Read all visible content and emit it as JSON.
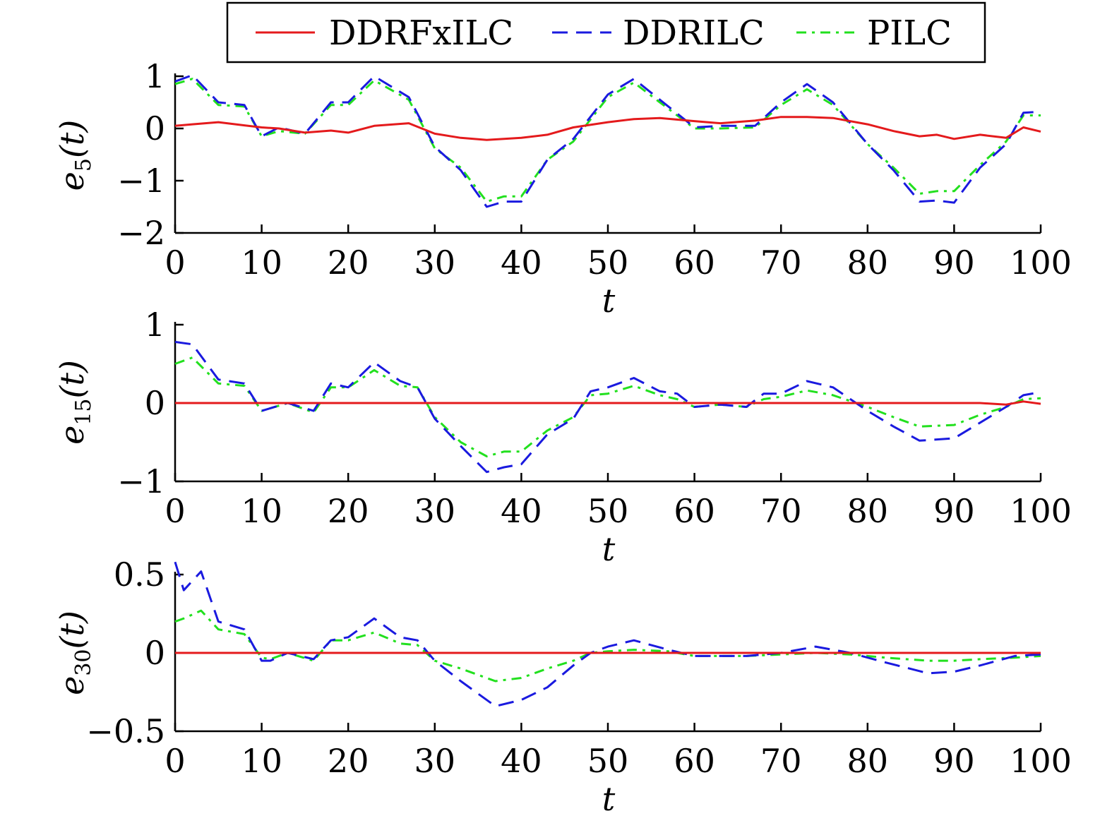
{
  "legend": {
    "entries": [
      {
        "label": "DDRFxILC",
        "color": "#e41a1c",
        "dash": "solid"
      },
      {
        "label": "DDRILC",
        "color": "#1a1adf",
        "dash": "dashed"
      },
      {
        "label": "PILC",
        "color": "#22e01e",
        "dash": "dashdot"
      }
    ]
  },
  "chart_data": [
    {
      "type": "line",
      "ylabel_base": "e",
      "ylabel_sub": "5",
      "ylabel_arg": "(t)",
      "xlabel": "t",
      "xlim": [
        0,
        100
      ],
      "ylim": [
        -2,
        1
      ],
      "xticks": [
        0,
        10,
        20,
        30,
        40,
        50,
        60,
        70,
        80,
        90,
        100
      ],
      "yticks": [
        -2,
        -1,
        0,
        1
      ],
      "ytick_labels": [
        "−2",
        "−1",
        "0",
        "1"
      ],
      "x": [
        0,
        2,
        5,
        8,
        10,
        12,
        15,
        18,
        20,
        23,
        27,
        30,
        33,
        36,
        38,
        40,
        43,
        46,
        50,
        53,
        56,
        60,
        63,
        67,
        70,
        73,
        76,
        80,
        83,
        86,
        88,
        90,
        93,
        96,
        98,
        100
      ],
      "series": [
        {
          "name": "DDRFxILC",
          "values": [
            0.05,
            0.08,
            0.12,
            0.06,
            0.02,
            0.0,
            -0.08,
            -0.04,
            -0.08,
            0.05,
            0.1,
            -0.1,
            -0.18,
            -0.22,
            -0.2,
            -0.18,
            -0.12,
            0.02,
            0.12,
            0.18,
            0.2,
            0.14,
            0.1,
            0.15,
            0.22,
            0.22,
            0.2,
            0.08,
            -0.05,
            -0.15,
            -0.12,
            -0.2,
            -0.12,
            -0.18,
            0.02,
            -0.06
          ]
        },
        {
          "name": "DDRILC",
          "values": [
            0.9,
            1.02,
            0.5,
            0.45,
            -0.15,
            0.02,
            -0.1,
            0.5,
            0.5,
            1.0,
            0.6,
            -0.35,
            -0.8,
            -1.5,
            -1.4,
            -1.4,
            -0.6,
            -0.2,
            0.65,
            0.95,
            0.55,
            0.02,
            0.05,
            0.05,
            0.5,
            0.85,
            0.5,
            -0.3,
            -0.8,
            -1.4,
            -1.38,
            -1.42,
            -0.75,
            -0.3,
            0.3,
            0.32
          ]
        },
        {
          "name": "PILC",
          "values": [
            0.85,
            0.95,
            0.45,
            0.42,
            -0.15,
            -0.05,
            -0.1,
            0.45,
            0.45,
            0.92,
            0.55,
            -0.38,
            -0.75,
            -1.4,
            -1.3,
            -1.3,
            -0.6,
            -0.25,
            0.6,
            0.88,
            0.5,
            0.0,
            0.0,
            0.02,
            0.45,
            0.75,
            0.45,
            -0.3,
            -0.75,
            -1.25,
            -1.2,
            -1.2,
            -0.7,
            -0.25,
            0.25,
            0.25
          ]
        }
      ]
    },
    {
      "type": "line",
      "ylabel_base": "e",
      "ylabel_sub": "15",
      "ylabel_arg": "(t)",
      "xlabel": "t",
      "xlim": [
        0,
        100
      ],
      "ylim": [
        -1,
        1
      ],
      "xticks": [
        0,
        10,
        20,
        30,
        40,
        50,
        60,
        70,
        80,
        90,
        100
      ],
      "yticks": [
        -1,
        0,
        1
      ],
      "ytick_labels": [
        "−1",
        "0",
        "1"
      ],
      "x": [
        0,
        2,
        5,
        8,
        10,
        13,
        16,
        18,
        20,
        23,
        26,
        28,
        30,
        33,
        36,
        38,
        40,
        43,
        46,
        48,
        50,
        53,
        56,
        58,
        60,
        63,
        66,
        68,
        70,
        73,
        76,
        80,
        83,
        86,
        90,
        93,
        96,
        98,
        100
      ],
      "series": [
        {
          "name": "DDRFxILC",
          "values": [
            0.0,
            0.0,
            0.0,
            0.0,
            0.0,
            0.0,
            0.0,
            0.0,
            0.0,
            0.0,
            0.0,
            0.0,
            0.0,
            0.0,
            0.0,
            0.0,
            0.0,
            0.0,
            0.0,
            0.0,
            0.0,
            0.0,
            0.0,
            0.0,
            0.0,
            0.0,
            0.0,
            0.0,
            0.0,
            0.0,
            0.0,
            0.0,
            0.0,
            0.0,
            0.0,
            0.0,
            -0.02,
            0.02,
            -0.01
          ]
        },
        {
          "name": "DDRILC",
          "values": [
            0.78,
            0.75,
            0.3,
            0.25,
            -0.1,
            0.0,
            -0.1,
            0.25,
            0.2,
            0.52,
            0.28,
            0.2,
            -0.2,
            -0.55,
            -0.88,
            -0.82,
            -0.78,
            -0.4,
            -0.2,
            0.15,
            0.2,
            0.32,
            0.15,
            0.12,
            -0.05,
            -0.02,
            -0.05,
            0.12,
            0.12,
            0.28,
            0.2,
            -0.1,
            -0.3,
            -0.48,
            -0.45,
            -0.25,
            -0.05,
            0.1,
            0.14
          ]
        },
        {
          "name": "PILC",
          "values": [
            0.5,
            0.58,
            0.25,
            0.22,
            -0.1,
            0.0,
            -0.12,
            0.2,
            0.2,
            0.42,
            0.22,
            0.2,
            -0.18,
            -0.5,
            -0.68,
            -0.62,
            -0.62,
            -0.35,
            -0.18,
            0.1,
            0.12,
            0.22,
            0.1,
            0.05,
            -0.05,
            -0.02,
            -0.05,
            0.05,
            0.08,
            0.16,
            0.1,
            -0.05,
            -0.18,
            -0.3,
            -0.28,
            -0.15,
            -0.05,
            0.05,
            0.06
          ]
        }
      ]
    },
    {
      "type": "line",
      "ylabel_base": "e",
      "ylabel_sub": "30",
      "ylabel_arg": "(t)",
      "xlabel": "t",
      "xlim": [
        0,
        100
      ],
      "ylim": [
        -0.5,
        0.5
      ],
      "xticks": [
        0,
        10,
        20,
        30,
        40,
        50,
        60,
        70,
        80,
        90,
        100
      ],
      "yticks": [
        -0.5,
        0,
        0.5
      ],
      "ytick_labels": [
        "−0.5",
        "0",
        "0.5"
      ],
      "x": [
        0,
        1,
        3,
        5,
        8,
        10,
        11,
        13,
        16,
        18,
        20,
        23,
        26,
        28,
        30,
        33,
        37,
        40,
        43,
        46,
        48,
        50,
        53,
        57,
        60,
        63,
        66,
        70,
        74,
        78,
        82,
        87,
        90,
        93,
        97,
        100
      ],
      "series": [
        {
          "name": "DDRFxILC",
          "values": [
            0.0,
            0.0,
            0.0,
            0.0,
            0.0,
            0.0,
            0.0,
            0.0,
            0.0,
            0.0,
            0.0,
            0.0,
            0.0,
            0.0,
            0.0,
            0.0,
            0.0,
            0.0,
            0.0,
            0.0,
            0.0,
            0.0,
            0.0,
            0.0,
            0.0,
            0.0,
            0.0,
            0.0,
            0.0,
            0.0,
            0.0,
            0.0,
            0.0,
            0.0,
            0.0,
            0.0
          ]
        },
        {
          "name": "DDRILC",
          "values": [
            0.58,
            0.4,
            0.52,
            0.2,
            0.15,
            -0.05,
            -0.05,
            0.0,
            -0.04,
            0.08,
            0.1,
            0.22,
            0.1,
            0.08,
            -0.05,
            -0.18,
            -0.34,
            -0.3,
            -0.22,
            -0.08,
            0.0,
            0.04,
            0.08,
            0.02,
            -0.02,
            -0.02,
            -0.02,
            0.0,
            0.04,
            0.0,
            -0.06,
            -0.13,
            -0.12,
            -0.08,
            -0.02,
            -0.01
          ]
        },
        {
          "name": "PILC",
          "values": [
            0.2,
            0.22,
            0.27,
            0.15,
            0.12,
            -0.03,
            -0.04,
            0.0,
            -0.05,
            0.08,
            0.08,
            0.13,
            0.06,
            0.05,
            -0.05,
            -0.1,
            -0.18,
            -0.16,
            -0.1,
            -0.05,
            0.0,
            0.01,
            0.02,
            0.01,
            -0.02,
            -0.02,
            -0.02,
            -0.01,
            0.0,
            -0.01,
            -0.03,
            -0.05,
            -0.05,
            -0.04,
            -0.03,
            -0.02
          ]
        }
      ]
    }
  ]
}
